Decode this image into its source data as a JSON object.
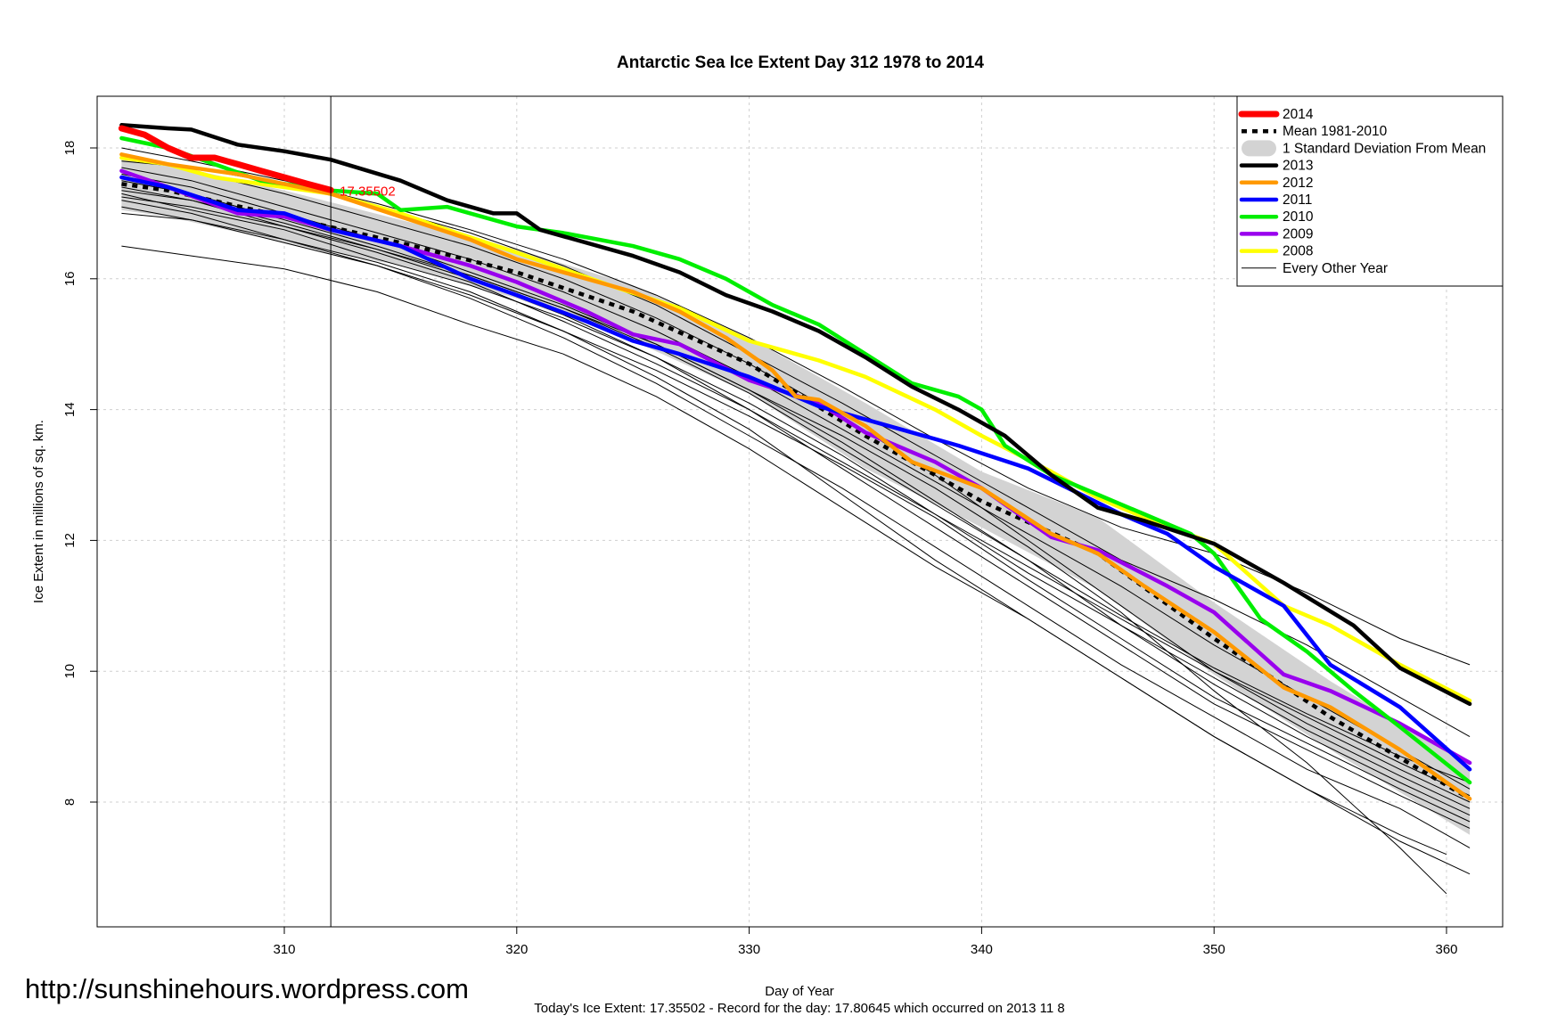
{
  "chart_data": {
    "type": "line",
    "title": "Antarctic Sea Ice Extent Day 312 1978 to 2014",
    "xlabel": "Day of Year",
    "ylabel": "Ice Extent in millions of sq. km.",
    "xlim": [
      303,
      361
    ],
    "ylim": [
      6.3,
      18.8
    ],
    "x_ticks": [
      310,
      320,
      330,
      340,
      350,
      360
    ],
    "y_ticks": [
      8,
      10,
      12,
      14,
      16,
      18
    ],
    "grid": true,
    "legend_position": "top-right",
    "current_day": 312,
    "current_value": 17.35502,
    "current_value_label": "17.35502",
    "legend": [
      {
        "label": "2014",
        "style": "thick",
        "color": "#ff0000"
      },
      {
        "label": "Mean 1981-2010",
        "style": "dashed",
        "color": "#000000"
      },
      {
        "label": "1 Standard Deviation From Mean",
        "style": "band",
        "color": "#d3d3d3"
      },
      {
        "label": "2013",
        "style": "thick",
        "color": "#000000"
      },
      {
        "label": "2012",
        "style": "thick",
        "color": "#ff9900"
      },
      {
        "label": "2011",
        "style": "thick",
        "color": "#0000ff"
      },
      {
        "label": "2010",
        "style": "thick",
        "color": "#00ee00"
      },
      {
        "label": "2009",
        "style": "thick",
        "color": "#9900ee"
      },
      {
        "label": "2008",
        "style": "thick",
        "color": "#ffff00"
      },
      {
        "label": "Every Other Year",
        "style": "thin",
        "color": "#000000"
      }
    ],
    "mean": {
      "name": "Mean 1981-2010",
      "x": [
        303,
        305,
        310,
        315,
        320,
        325,
        330,
        335,
        340,
        345,
        350,
        355,
        361
      ],
      "y": [
        17.45,
        17.35,
        16.95,
        16.55,
        16.1,
        15.5,
        14.7,
        13.6,
        12.6,
        11.8,
        10.5,
        9.3,
        8.05
      ]
    },
    "std_band": {
      "x": [
        303,
        305,
        310,
        315,
        320,
        325,
        330,
        335,
        340,
        345,
        350,
        355,
        361
      ],
      "upper": [
        17.85,
        17.75,
        17.35,
        16.9,
        16.45,
        15.9,
        15.1,
        14.1,
        13.05,
        12.35,
        11.05,
        9.85,
        8.55
      ],
      "lower": [
        17.05,
        16.95,
        16.55,
        16.2,
        15.7,
        15.05,
        14.25,
        13.1,
        12.2,
        11.25,
        9.95,
        8.8,
        7.5
      ]
    },
    "series": [
      {
        "name": "2014",
        "color": "#ff0000",
        "width": 7,
        "x": [
          303,
          304,
          305,
          306,
          307,
          308,
          309,
          310,
          311,
          312
        ],
        "y": [
          18.3,
          18.2,
          18.0,
          17.85,
          17.85,
          17.75,
          17.65,
          17.55,
          17.45,
          17.355
        ]
      },
      {
        "name": "2013",
        "color": "#000000",
        "width": 4.5,
        "x": [
          303,
          305,
          306,
          308,
          310,
          312,
          315,
          317,
          319,
          320,
          321,
          325,
          327,
          329,
          331,
          333,
          335,
          337,
          339,
          341,
          343,
          345,
          347,
          350,
          353,
          356,
          358,
          361
        ],
        "y": [
          18.35,
          18.3,
          18.28,
          18.05,
          17.95,
          17.82,
          17.5,
          17.2,
          17.0,
          17.0,
          16.75,
          16.35,
          16.1,
          15.75,
          15.5,
          15.2,
          14.8,
          14.35,
          14.0,
          13.6,
          13.0,
          12.5,
          12.3,
          11.95,
          11.35,
          10.7,
          10.05,
          9.5
        ]
      },
      {
        "name": "2012",
        "color": "#ff9900",
        "width": 4.5,
        "x": [
          303,
          305,
          308,
          310,
          312,
          315,
          318,
          320,
          323,
          325,
          327,
          329,
          331,
          332,
          333,
          335,
          337,
          340,
          343,
          345,
          347,
          350,
          353,
          355,
          358,
          361
        ],
        "y": [
          17.9,
          17.75,
          17.6,
          17.45,
          17.3,
          16.95,
          16.6,
          16.3,
          16.0,
          15.8,
          15.5,
          15.1,
          14.6,
          14.2,
          14.15,
          13.75,
          13.2,
          12.8,
          12.1,
          11.8,
          11.3,
          10.6,
          9.75,
          9.45,
          8.8,
          8.05
        ]
      },
      {
        "name": "2011",
        "color": "#0000ff",
        "width": 4.5,
        "x": [
          303,
          305,
          308,
          310,
          312,
          315,
          318,
          320,
          323,
          325,
          327,
          330,
          333,
          336,
          339,
          342,
          344,
          346,
          348,
          350,
          353,
          355,
          358,
          361
        ],
        "y": [
          17.55,
          17.4,
          17.05,
          17.0,
          16.75,
          16.5,
          16.0,
          15.75,
          15.35,
          15.05,
          14.85,
          14.5,
          14.05,
          13.75,
          13.45,
          13.1,
          12.75,
          12.4,
          12.1,
          11.6,
          11.0,
          10.1,
          9.45,
          8.5
        ]
      },
      {
        "name": "2010",
        "color": "#00ee00",
        "width": 4.5,
        "x": [
          303,
          305,
          307,
          309,
          311,
          312,
          314,
          315,
          317,
          320,
          322,
          325,
          327,
          329,
          331,
          333,
          335,
          337,
          339,
          340,
          341,
          343,
          345,
          347,
          349,
          350,
          352,
          354,
          356,
          358,
          361
        ],
        "y": [
          18.15,
          18.0,
          17.75,
          17.5,
          17.4,
          17.35,
          17.3,
          17.05,
          17.1,
          16.8,
          16.7,
          16.5,
          16.3,
          16.0,
          15.6,
          15.3,
          14.85,
          14.4,
          14.2,
          14.0,
          13.45,
          13.0,
          12.7,
          12.4,
          12.1,
          11.8,
          10.8,
          10.3,
          9.7,
          9.15,
          8.3
        ]
      },
      {
        "name": "2009",
        "color": "#9900ee",
        "width": 4.5,
        "x": [
          303,
          305,
          308,
          310,
          312,
          315,
          318,
          320,
          323,
          325,
          327,
          330,
          333,
          335,
          338,
          340,
          343,
          345,
          348,
          350,
          353,
          355,
          358,
          361
        ],
        "y": [
          17.65,
          17.4,
          17.0,
          16.95,
          16.75,
          16.5,
          16.2,
          15.95,
          15.5,
          15.15,
          15.0,
          14.45,
          14.1,
          13.65,
          13.2,
          12.8,
          12.05,
          11.85,
          11.3,
          10.9,
          9.95,
          9.7,
          9.2,
          8.6
        ]
      },
      {
        "name": "2008",
        "color": "#ffff00",
        "width": 4.5,
        "x": [
          303,
          305,
          307,
          309,
          310,
          312,
          315,
          317,
          320,
          322,
          324,
          327,
          330,
          333,
          335,
          338,
          340,
          343,
          345,
          347,
          350,
          353,
          355,
          358,
          361
        ],
        "y": [
          17.85,
          17.75,
          17.55,
          17.45,
          17.4,
          17.3,
          17.0,
          16.75,
          16.4,
          16.15,
          15.9,
          15.55,
          15.05,
          14.75,
          14.5,
          14.0,
          13.6,
          13.05,
          12.65,
          12.35,
          11.95,
          11.0,
          10.7,
          10.1,
          9.55
        ]
      }
    ],
    "other_years": [
      {
        "x": [
          303,
          306,
          310,
          314,
          318,
          322,
          326,
          330,
          334,
          338,
          342,
          346,
          350,
          354,
          358,
          361
        ],
        "y": [
          17.9,
          17.65,
          17.3,
          16.9,
          16.5,
          16.0,
          15.4,
          14.7,
          13.9,
          13.0,
          12.0,
          11.0,
          10.0,
          9.2,
          8.5,
          8.0
        ]
      },
      {
        "x": [
          303,
          306,
          310,
          314,
          318,
          322,
          326,
          330,
          334,
          338,
          342,
          346,
          350,
          354,
          358,
          361
        ],
        "y": [
          17.6,
          17.4,
          17.0,
          16.6,
          16.1,
          15.6,
          15.0,
          14.3,
          13.5,
          12.6,
          11.7,
          10.7,
          9.8,
          9.0,
          8.3,
          7.8
        ]
      },
      {
        "x": [
          303,
          306,
          310,
          314,
          318,
          322,
          326,
          330,
          334,
          338,
          342,
          346,
          350,
          354,
          358,
          361
        ],
        "y": [
          17.4,
          17.2,
          16.8,
          16.45,
          16.0,
          15.45,
          14.8,
          14.0,
          13.1,
          12.2,
          11.3,
          10.4,
          9.5,
          8.8,
          8.1,
          7.6
        ]
      },
      {
        "x": [
          303,
          306,
          310,
          314,
          318,
          322,
          326,
          330,
          334,
          338,
          342,
          346,
          350,
          354,
          358,
          361
        ],
        "y": [
          17.3,
          17.05,
          16.75,
          16.3,
          15.9,
          15.4,
          14.8,
          14.1,
          13.3,
          12.4,
          11.5,
          10.7,
          9.9,
          9.1,
          8.4,
          7.9
        ]
      },
      {
        "x": [
          303,
          306,
          310,
          314,
          318,
          322,
          326,
          330,
          334,
          338,
          342,
          346,
          350,
          354,
          358,
          361
        ],
        "y": [
          17.1,
          16.9,
          16.55,
          16.2,
          15.7,
          15.1,
          14.4,
          13.6,
          12.8,
          11.9,
          11.0,
          10.1,
          9.3,
          8.5,
          7.9,
          7.3
        ]
      },
      {
        "x": [
          303,
          306,
          310,
          314,
          318,
          322,
          326,
          330,
          334,
          338,
          342,
          346,
          350,
          354,
          358,
          361
        ],
        "y": [
          16.5,
          16.35,
          16.15,
          15.8,
          15.3,
          14.85,
          14.2,
          13.4,
          12.5,
          11.6,
          10.8,
          9.9,
          9.0,
          8.2,
          7.4,
          6.9
        ]
      },
      {
        "x": [
          303,
          306,
          310,
          314,
          318,
          322,
          326,
          330,
          334,
          338,
          342,
          346,
          350,
          354,
          358,
          360
        ],
        "y": [
          17.2,
          17.0,
          16.6,
          16.25,
          15.8,
          15.2,
          14.5,
          13.7,
          12.7,
          11.7,
          10.8,
          9.9,
          9.0,
          8.2,
          7.5,
          7.2
        ]
      },
      {
        "x": [
          303,
          306,
          310,
          314,
          318,
          322,
          326,
          330,
          334,
          338,
          342,
          346,
          350,
          354,
          358,
          360
        ],
        "y": [
          17.5,
          17.3,
          16.9,
          16.5,
          16.05,
          15.55,
          15.0,
          14.3,
          13.6,
          12.8,
          11.9,
          10.9,
          9.7,
          8.6,
          7.3,
          6.6
        ]
      },
      {
        "x": [
          303,
          306,
          310,
          314,
          318,
          322,
          326,
          330,
          334,
          338,
          342,
          346,
          350,
          354,
          358,
          361
        ],
        "y": [
          17.7,
          17.5,
          17.1,
          16.7,
          16.3,
          15.8,
          15.2,
          14.5,
          13.7,
          12.9,
          12.1,
          11.3,
          10.4,
          9.6,
          8.8,
          8.2
        ]
      },
      {
        "x": [
          303,
          306,
          310,
          314,
          318,
          322,
          326,
          330,
          334,
          338,
          342,
          346,
          350,
          354,
          358,
          361
        ],
        "y": [
          17.25,
          17.1,
          16.8,
          16.4,
          15.95,
          15.35,
          14.7,
          14.0,
          13.2,
          12.4,
          11.6,
          10.8,
          10.0,
          9.3,
          8.6,
          8.1
        ]
      },
      {
        "x": [
          303,
          306,
          310,
          314,
          318,
          322,
          326,
          330,
          334,
          338,
          342,
          346,
          350,
          354,
          358,
          361
        ],
        "y": [
          17.8,
          17.7,
          17.45,
          17.1,
          16.7,
          16.2,
          15.6,
          14.85,
          14.1,
          13.3,
          12.5,
          11.7,
          11.1,
          10.4,
          9.6,
          9.0
        ]
      },
      {
        "x": [
          303,
          306,
          310,
          314,
          318,
          322,
          326,
          330,
          334,
          338,
          342,
          346,
          350,
          354,
          358,
          361
        ],
        "y": [
          17.0,
          16.9,
          16.6,
          16.2,
          15.75,
          15.2,
          14.6,
          13.9,
          13.15,
          12.35,
          11.4,
          10.5,
          9.6,
          8.9,
          8.2,
          7.7
        ]
      },
      {
        "x": [
          303,
          306,
          310,
          314,
          318,
          322,
          326,
          330,
          334,
          338,
          342,
          346,
          350,
          354,
          358,
          361
        ],
        "y": [
          18.0,
          17.8,
          17.5,
          17.15,
          16.75,
          16.3,
          15.75,
          15.1,
          14.35,
          13.55,
          12.8,
          12.2,
          11.8,
          11.2,
          10.5,
          10.1
        ]
      },
      {
        "x": [
          303,
          306,
          310,
          314,
          318,
          322,
          326,
          330,
          334,
          338,
          342,
          346,
          350,
          354,
          358,
          361
        ],
        "y": [
          17.35,
          17.2,
          16.85,
          16.45,
          16.05,
          15.55,
          14.95,
          14.25,
          13.4,
          12.55,
          11.7,
          10.85,
          10.05,
          9.35,
          8.7,
          8.3
        ]
      }
    ]
  },
  "url_text": "http://sunshinehours.wordpress.com",
  "footer_text": "Today's Ice Extent: 17.35502  - Record for the day: 17.80645 which occurred on 2013 11 8"
}
